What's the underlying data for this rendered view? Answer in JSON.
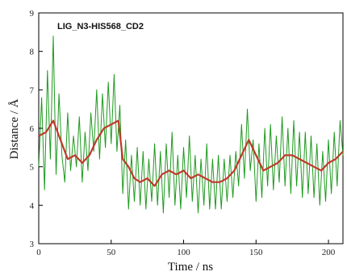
{
  "chart_data": {
    "type": "line",
    "title": "LIG_N3-HIS568_CD2",
    "xlabel": "Time / ns",
    "ylabel": "Distance / Å",
    "xlim": [
      0,
      210
    ],
    "ylim": [
      3,
      9
    ],
    "xticks": [
      0,
      50,
      100,
      150,
      200
    ],
    "yticks": [
      3,
      4,
      5,
      6,
      7,
      8,
      9
    ],
    "grid": false,
    "colors": {
      "raw": "#1f9a1f",
      "smooth": "#c0392b",
      "axis": "#000000"
    },
    "series": [
      {
        "role": "raw",
        "x": [
          0,
          2,
          4,
          6,
          8,
          10,
          12,
          14,
          16,
          18,
          20,
          22,
          24,
          26,
          28,
          30,
          32,
          34,
          36,
          38,
          40,
          42,
          44,
          46,
          48,
          50,
          52,
          54,
          56,
          58,
          60,
          62,
          64,
          66,
          68,
          70,
          72,
          74,
          76,
          78,
          80,
          82,
          84,
          86,
          88,
          90,
          92,
          94,
          96,
          98,
          100,
          102,
          104,
          106,
          108,
          110,
          112,
          114,
          116,
          118,
          120,
          122,
          124,
          126,
          128,
          130,
          132,
          134,
          136,
          138,
          140,
          142,
          144,
          146,
          148,
          150,
          152,
          154,
          156,
          158,
          160,
          162,
          164,
          166,
          168,
          170,
          172,
          174,
          176,
          178,
          180,
          182,
          184,
          186,
          188,
          190,
          192,
          194,
          196,
          198,
          200,
          202,
          204,
          206,
          208,
          210
        ],
        "y": [
          5.0,
          6.8,
          4.4,
          7.5,
          5.2,
          8.4,
          4.8,
          6.9,
          5.3,
          4.6,
          6.4,
          4.9,
          5.8,
          5.0,
          6.3,
          4.6,
          5.9,
          4.9,
          6.4,
          5.4,
          7.0,
          5.2,
          6.9,
          5.5,
          7.2,
          5.6,
          7.4,
          5.4,
          6.6,
          4.3,
          5.7,
          3.9,
          5.3,
          4.1,
          5.5,
          4.0,
          5.4,
          3.9,
          5.2,
          4.1,
          5.6,
          4.0,
          5.4,
          3.8,
          5.6,
          4.2,
          5.9,
          4.0,
          5.3,
          3.9,
          5.5,
          4.2,
          5.8,
          4.1,
          5.3,
          3.8,
          5.2,
          4.0,
          5.6,
          3.9,
          5.2,
          3.9,
          5.3,
          3.9,
          5.2,
          4.1,
          5.3,
          4.2,
          5.4,
          4.5,
          6.1,
          4.7,
          6.5,
          4.9,
          5.7,
          4.1,
          5.6,
          4.2,
          6.0,
          4.5,
          6.1,
          4.4,
          5.8,
          4.6,
          6.3,
          4.5,
          6.0,
          4.3,
          6.2,
          4.5,
          5.9,
          4.2,
          5.9,
          4.3,
          5.8,
          4.2,
          5.6,
          4.0,
          5.4,
          4.1,
          5.7,
          4.3,
          5.9,
          4.5,
          6.2,
          5.3
        ]
      },
      {
        "role": "smooth",
        "x": [
          0,
          5,
          10,
          15,
          20,
          25,
          30,
          35,
          40,
          45,
          50,
          55,
          58,
          62,
          66,
          70,
          75,
          80,
          85,
          90,
          95,
          100,
          105,
          110,
          115,
          120,
          125,
          130,
          135,
          140,
          145,
          150,
          155,
          160,
          165,
          170,
          175,
          180,
          185,
          190,
          195,
          200,
          205,
          210
        ],
        "y": [
          5.8,
          5.9,
          6.2,
          5.7,
          5.2,
          5.3,
          5.1,
          5.3,
          5.7,
          6.0,
          6.1,
          6.2,
          5.2,
          5.0,
          4.7,
          4.6,
          4.7,
          4.5,
          4.8,
          4.9,
          4.8,
          4.9,
          4.7,
          4.8,
          4.7,
          4.6,
          4.6,
          4.7,
          4.9,
          5.3,
          5.7,
          5.3,
          4.9,
          5.0,
          5.1,
          5.3,
          5.3,
          5.2,
          5.1,
          5.0,
          4.9,
          5.1,
          5.2,
          5.4
        ]
      }
    ]
  }
}
